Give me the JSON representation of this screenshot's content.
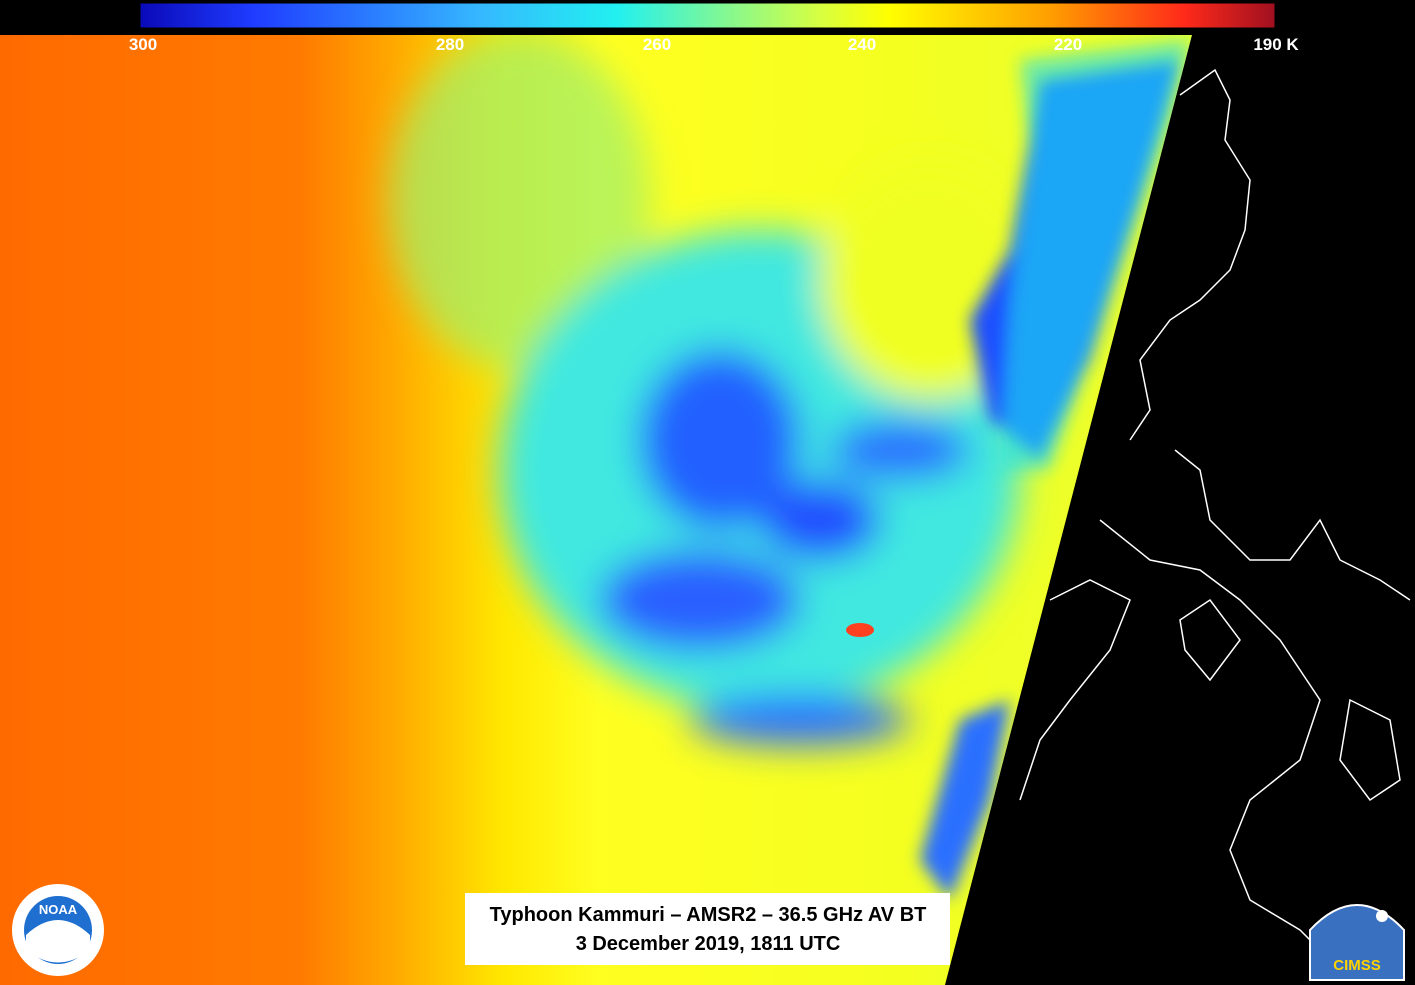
{
  "colorbar": {
    "ticks": [
      "300",
      "280",
      "260",
      "240",
      "220",
      "190 K"
    ]
  },
  "caption": {
    "line1": "Typhoon Kammuri – AMSR2 – 36.5 GHz AV BT",
    "line2": "3 December 2019, 1811 UTC"
  },
  "logos": {
    "left": "NOAA",
    "right": "CIMSS"
  }
}
